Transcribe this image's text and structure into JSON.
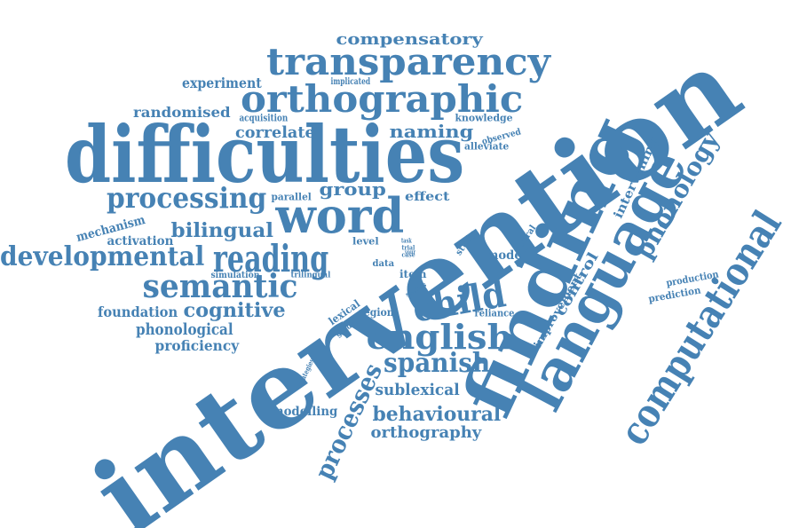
{
  "style": {
    "word_color": "#4682b4",
    "background": "#ffffff"
  },
  "words": [
    "intervention",
    "difficulties",
    "finding",
    "language",
    "computational",
    "word",
    "orthographic",
    "transparency",
    "english",
    "reading",
    "semantic",
    "child",
    "spanish",
    "processing",
    "developmental",
    "phonology",
    "processes",
    "behavioural",
    "cognitive",
    "bilingual",
    "compensatory",
    "orthography",
    "naming",
    "group",
    "correlate",
    "randomised",
    "sublexical",
    "phonological",
    "proficiency",
    "foundation",
    "experiment",
    "mechanism",
    "activation",
    "intervening",
    "control",
    "improvement",
    "modelling",
    "effect",
    "model",
    "knowledge",
    "alleviate",
    "production",
    "prediction",
    "parallel",
    "acquisition",
    "implicated",
    "observed",
    "neural",
    "study",
    "lexical",
    "region",
    "reliance",
    "item",
    "level",
    "data",
    "series",
    "graded",
    "simulation",
    "trilingual",
    "strategies",
    "task",
    "trial",
    "case",
    "your"
  ]
}
